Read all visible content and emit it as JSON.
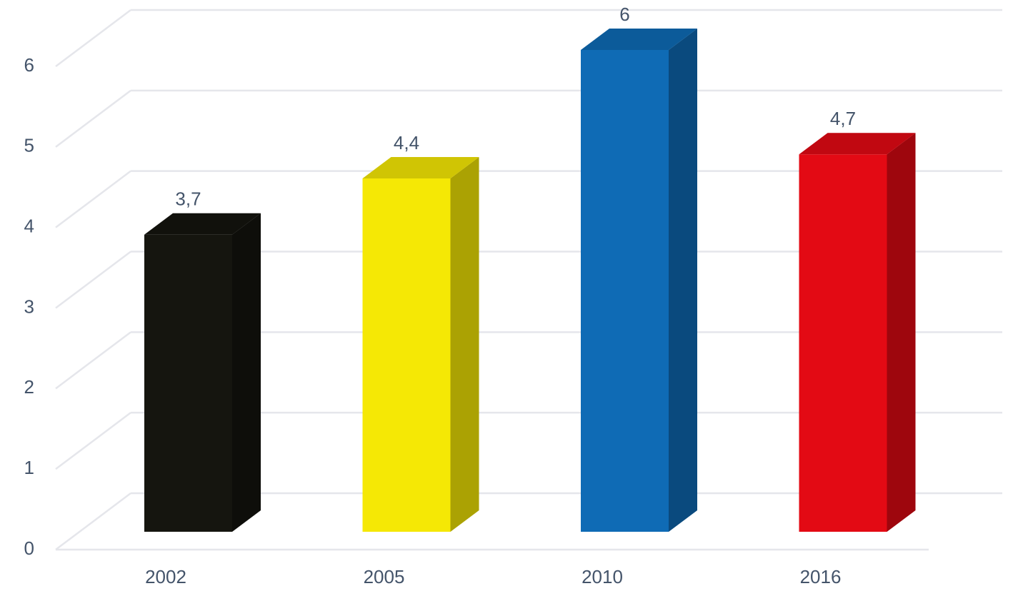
{
  "chart_data": {
    "type": "bar3d",
    "categories": [
      "2002",
      "2005",
      "2010",
      "2016"
    ],
    "values": [
      3.7,
      4.4,
      6,
      4.7
    ],
    "value_labels": [
      "3,7",
      "4,4",
      "6",
      "4,7"
    ],
    "colors": [
      "#15150f",
      "#f5e805",
      "#0f6bb5",
      "#e30a14"
    ],
    "ylim": [
      0,
      6
    ],
    "yticks": [
      0,
      1,
      2,
      3,
      4,
      5,
      6
    ],
    "grid": true
  }
}
